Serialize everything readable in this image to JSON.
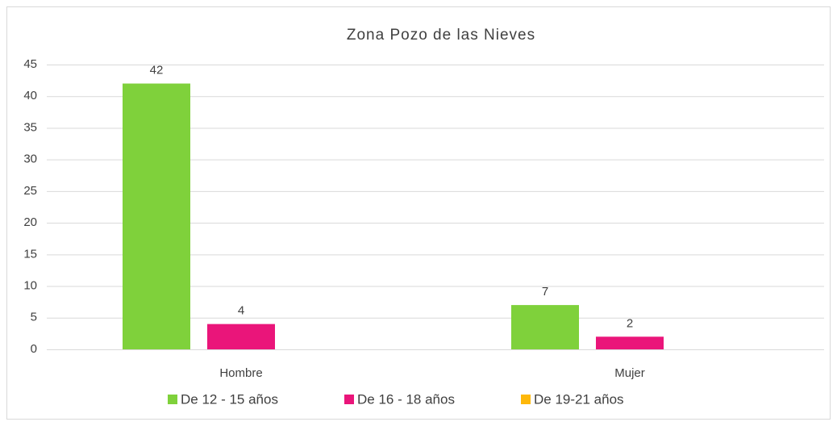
{
  "chart_data": {
    "type": "bar",
    "title": "Zona Pozo de las Nieves",
    "categories": [
      "Hombre",
      "Mujer"
    ],
    "series": [
      {
        "name": "De 12 - 15 años",
        "color": "#7fd13b",
        "values": [
          42,
          7
        ]
      },
      {
        "name": "De 16 - 18 años",
        "color": "#ea157a",
        "values": [
          4,
          2
        ]
      },
      {
        "name": "De 19-21 años",
        "color": "#feb80a",
        "values": [
          null,
          null
        ]
      }
    ],
    "ylim": [
      0,
      45
    ],
    "yticks": [
      0,
      5,
      10,
      15,
      20,
      25,
      30,
      35,
      40,
      45
    ],
    "grid": true,
    "legend": "bottom"
  }
}
